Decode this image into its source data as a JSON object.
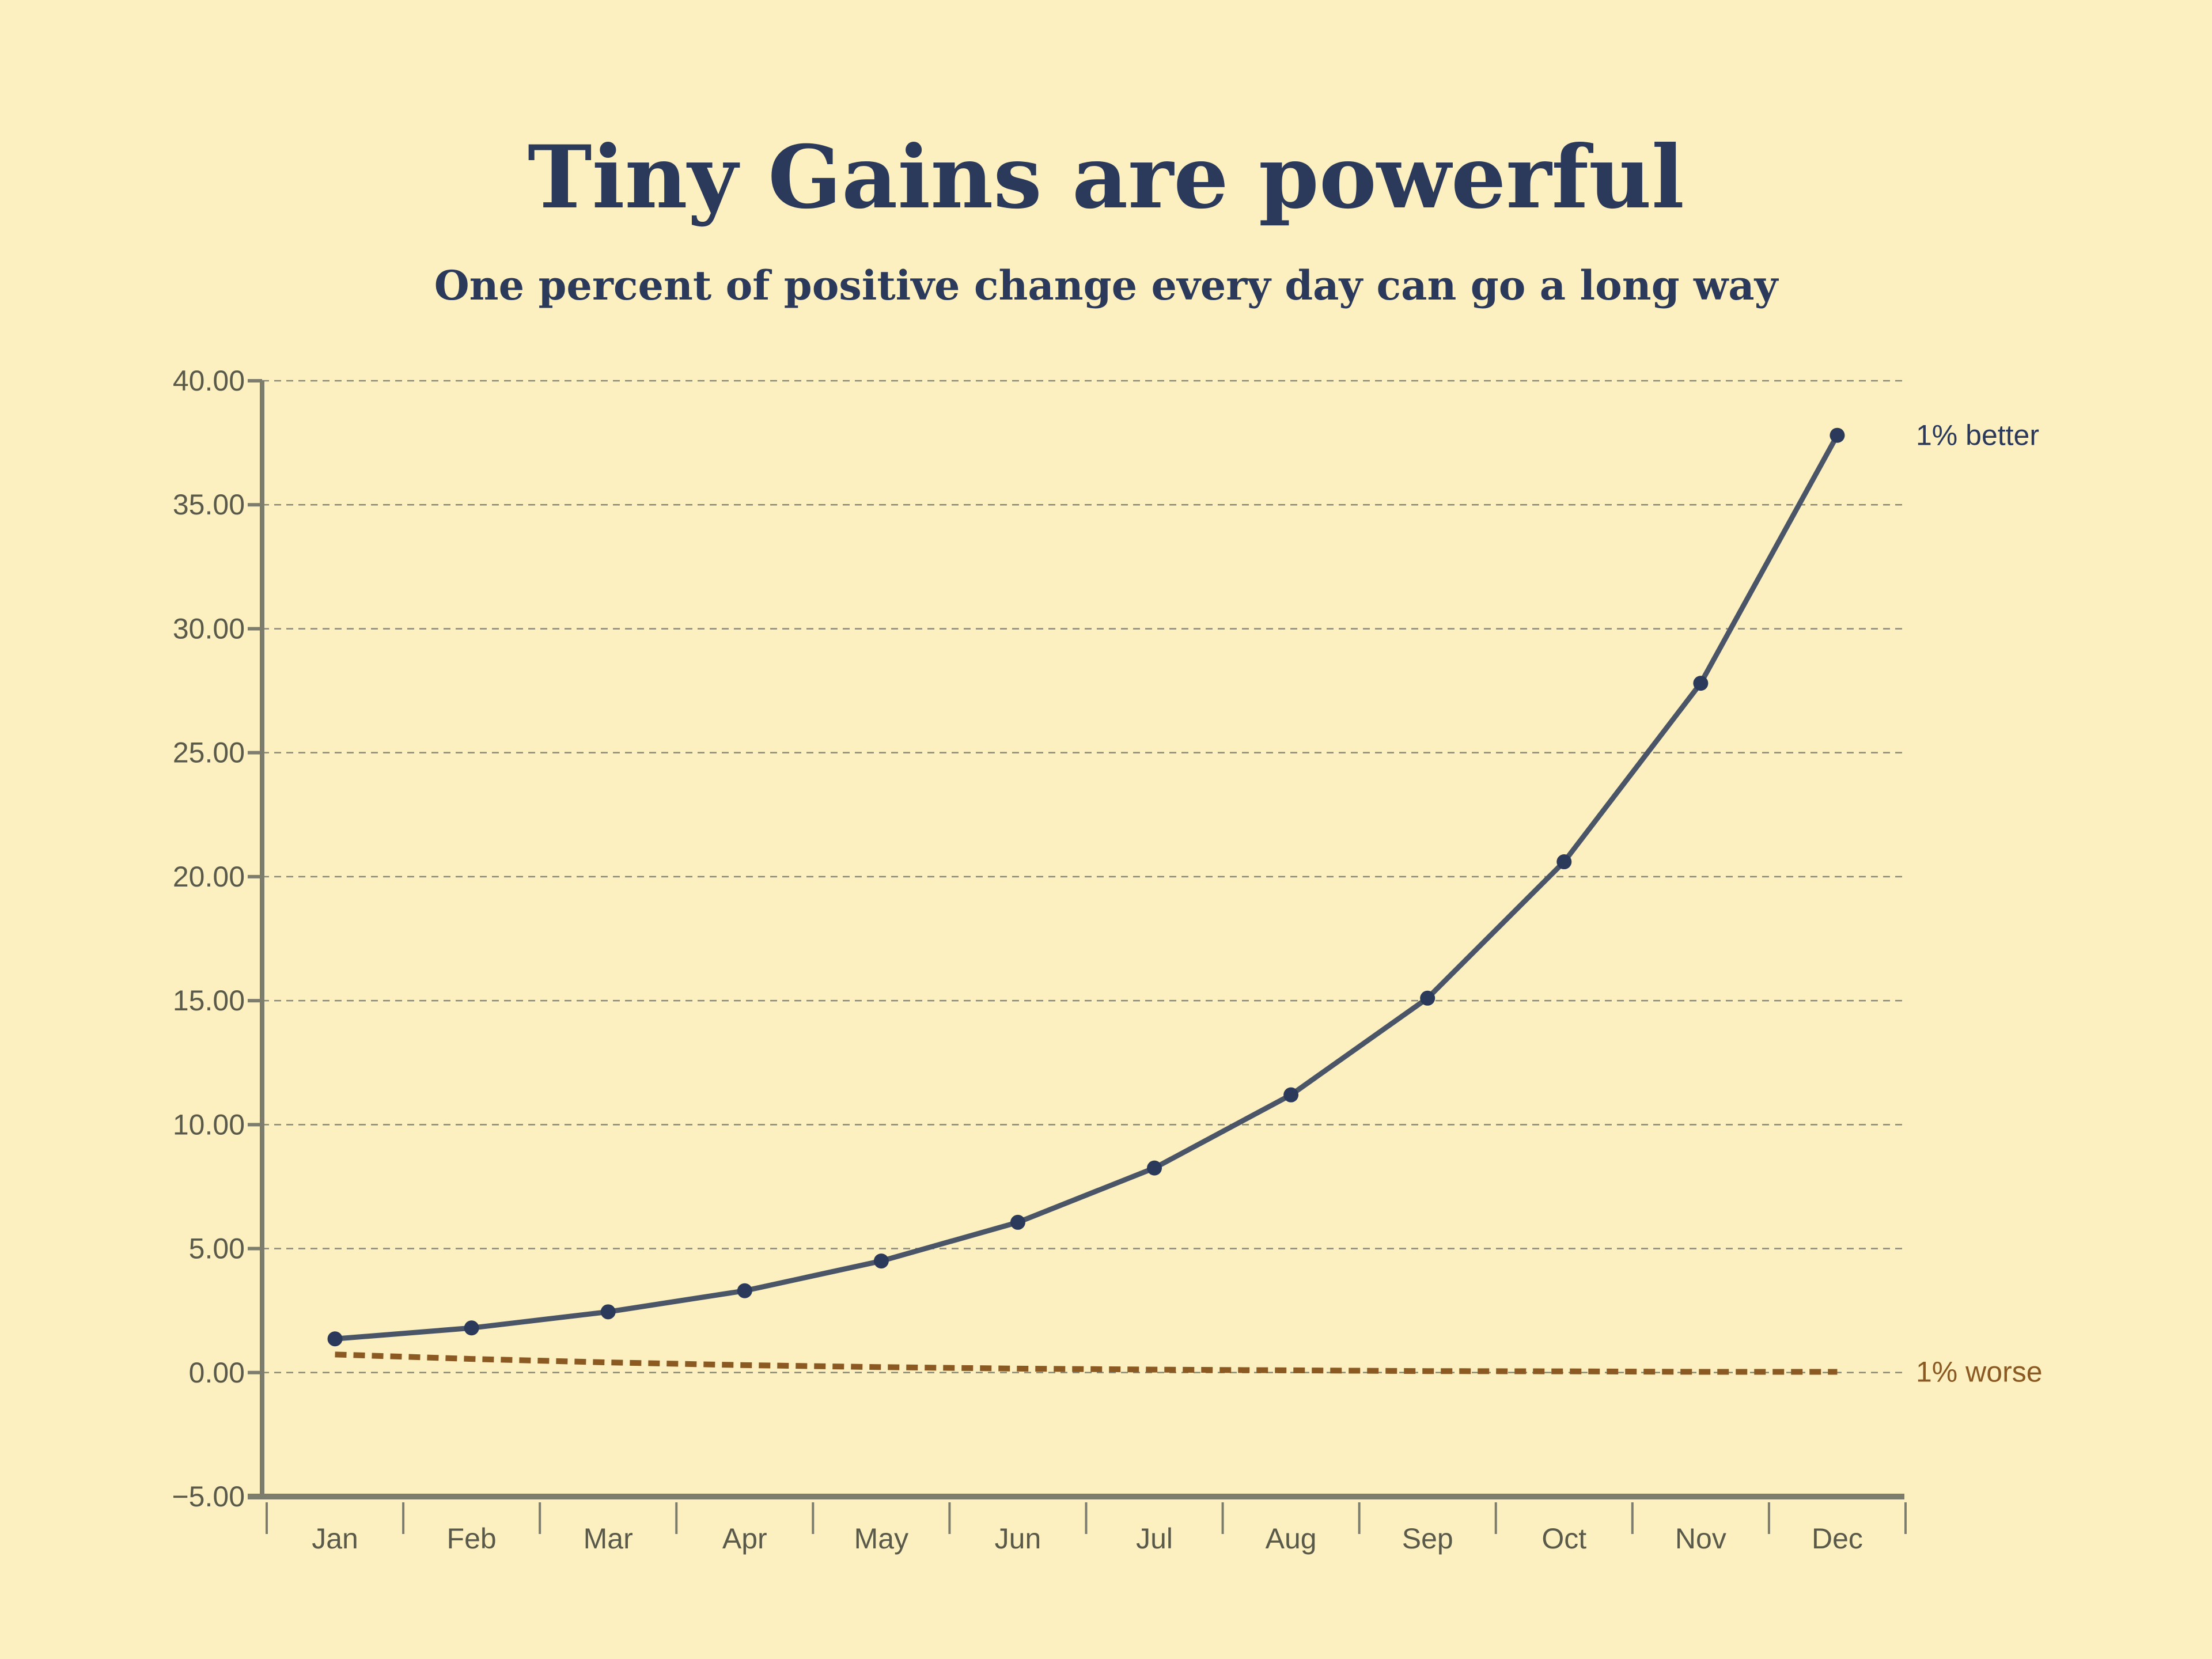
{
  "chart_data": {
    "type": "line",
    "title": "Tiny Gains are powerful",
    "subtitle": "One percent of positive change every day can go a long way",
    "xlabel": "",
    "ylabel": "",
    "categories": [
      "Jan",
      "Feb",
      "Mar",
      "Apr",
      "May",
      "Jun",
      "Jul",
      "Aug",
      "Sep",
      "Oct",
      "Nov",
      "Dec"
    ],
    "ylim": [
      -5,
      40
    ],
    "yticks": [
      "40.00",
      "35.00",
      "30.00",
      "25.00",
      "20.00",
      "15.00",
      "10.00",
      "5.00",
      "0.00",
      "−5.00"
    ],
    "ytick_values": [
      40,
      35,
      30,
      25,
      20,
      15,
      10,
      5,
      0,
      -5
    ],
    "grid": true,
    "series": [
      {
        "name": "1% better",
        "color": "#4a5568",
        "marker_color": "#2b3a5a",
        "style": "solid",
        "markers": true,
        "values": [
          1.36,
          1.8,
          2.45,
          3.3,
          4.5,
          6.06,
          8.25,
          11.2,
          15.1,
          20.6,
          27.8,
          37.8
        ]
      },
      {
        "name": "1% worse",
        "color": "#8b5a22",
        "style": "dashed",
        "markers": false,
        "values": [
          0.73,
          0.55,
          0.41,
          0.3,
          0.22,
          0.16,
          0.12,
          0.09,
          0.06,
          0.05,
          0.03,
          0.03
        ]
      }
    ],
    "background": "#fcefc0",
    "legend": "inline-right"
  }
}
